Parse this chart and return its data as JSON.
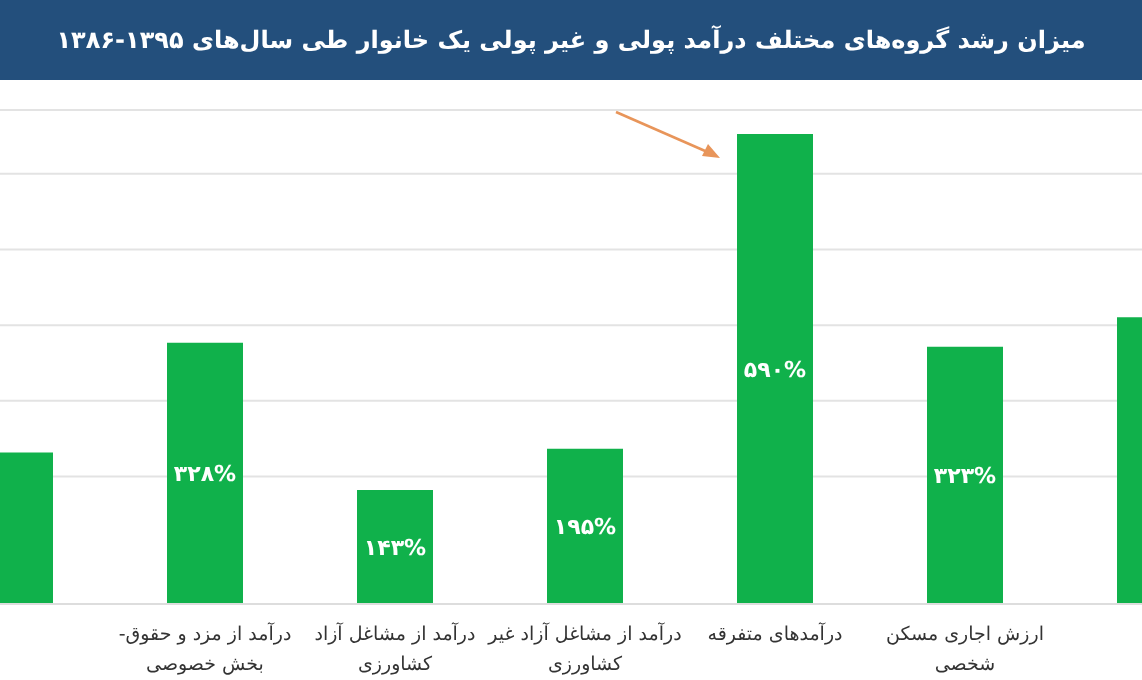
{
  "chart_data": {
    "type": "bar",
    "title": "میزان رشد گروه‌های مختلف درآمد پولی و غیر پولی یک خانوار طی سال‌های ۱۳۹۵-۱۳۸۶",
    "categories": [
      null,
      "درآمد از مزد و حقوق-\nبخش خصوصی",
      "درآمد از مشاغل آزاد\nکشاورزی",
      "درآمد از مشاغل آزاد غیر\nکشاورزی",
      "درآمدهای متفرقه",
      "ارزش اجاری مسکن\nشخصی",
      null
    ],
    "values": [
      190,
      328,
      143,
      195,
      590,
      323,
      360
    ],
    "value_labels": [
      null,
      "۳۲۸%",
      "۱۴۳%",
      "۱۹۵%",
      "۵۹۰%",
      "۳۲۳%",
      null
    ],
    "color": "#10b14b",
    "ylim": [
      0,
      620
    ],
    "yticks": [
      {
        "value": 160,
        "label": null
      },
      {
        "value": 255,
        "label": null
      },
      {
        "value": 350,
        "label": null
      },
      {
        "value": 445,
        "label": null
      },
      {
        "value": 540,
        "label": null
      }
    ],
    "grid": "y",
    "tick_labels": "x"
  }
}
